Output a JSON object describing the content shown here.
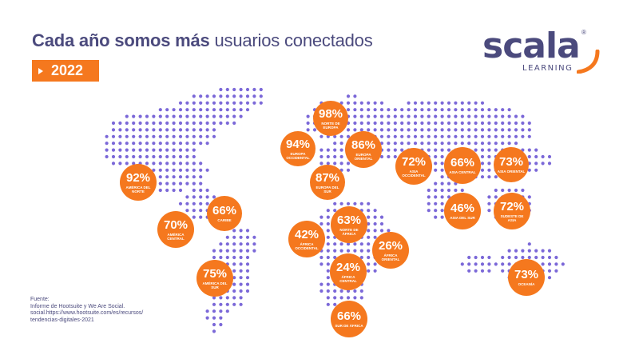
{
  "header": {
    "title_bold": "Cada año somos más",
    "title_light": "usuarios conectados",
    "year": "2022"
  },
  "logo": {
    "word": "scala",
    "registered": "®",
    "sub": "LEARNING"
  },
  "colors": {
    "accent": "#f5781e",
    "brand": "#4b4a7d",
    "dots": "#7b68d8"
  },
  "regions": [
    {
      "pct": "98%",
      "label": "NORTE DE EUROPA"
    },
    {
      "pct": "94%",
      "label": "EUROPA OCCIDENTAL"
    },
    {
      "pct": "86%",
      "label": "EUROPA ORIENTAL"
    },
    {
      "pct": "72%",
      "label": "ASIA OCCIDENTAL"
    },
    {
      "pct": "66%",
      "label": "ASIA CENTRAL"
    },
    {
      "pct": "73%",
      "label": "ASIA ORIENTAL"
    },
    {
      "pct": "92%",
      "label": "AMÉRICA DEL NORTE"
    },
    {
      "pct": "87%",
      "label": "EUROPA DEL SUR"
    },
    {
      "pct": "66%",
      "label": "CARIBE"
    },
    {
      "pct": "70%",
      "label": "AMÉRICA CENTRAL"
    },
    {
      "pct": "46%",
      "label": "ASIA DEL SUR"
    },
    {
      "pct": "72%",
      "label": "SUDESTE DE ASIA"
    },
    {
      "pct": "63%",
      "label": "NORTE DE ÁFRICA"
    },
    {
      "pct": "42%",
      "label": "ÁFRICA OCCIDENTAL"
    },
    {
      "pct": "26%",
      "label": "ÁFRICA ORIENTAL"
    },
    {
      "pct": "24%",
      "label": "ÁFRICA CENTRAL"
    },
    {
      "pct": "75%",
      "label": "AMÉRICA DEL SUR"
    },
    {
      "pct": "73%",
      "label": "OCEANÍA"
    },
    {
      "pct": "66%",
      "label": "SUR DE ÁFRICA"
    }
  ],
  "source": {
    "line1": "Fuente:",
    "line2": "Informe de Hootsuite y We Are Social.",
    "line3": "social.https://www.hootsuite.com/es/recursos/",
    "line4": "tendencias-digitales-2021"
  }
}
